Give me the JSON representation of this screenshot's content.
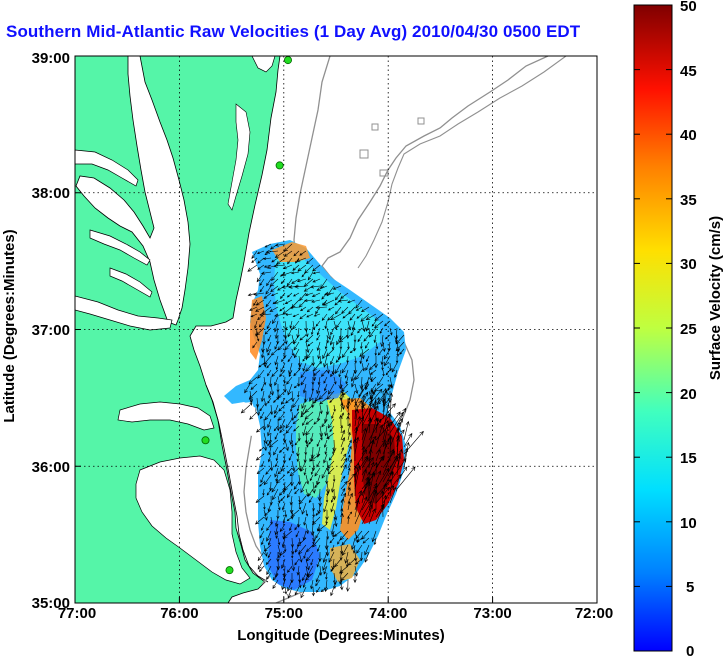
{
  "title": "Southern Mid-Atlantic Raw Velocities (1 Day Avg) 2010/04/30 0500 EDT",
  "map": {
    "x_ticks": [
      "77:00",
      "76:00",
      "75:00",
      "74:00",
      "73:00",
      "72:00"
    ],
    "y_ticks": [
      "39:00",
      "38:00",
      "37:00",
      "36:00",
      "35:00"
    ],
    "xlabel": "Longitude (Degrees:Minutes)",
    "ylabel": "Latitude (Degrees:Minutes)",
    "lon_range": [
      -77,
      -72
    ],
    "lat_range": [
      35,
      39
    ],
    "land_color": "#55f5a8",
    "water_color": "#ffffff",
    "grid": "dotted"
  },
  "colorbar": {
    "label": "Surface Velocity (cm/s)",
    "ticks": [
      "50",
      "45",
      "40",
      "35",
      "30",
      "25",
      "20",
      "15",
      "10",
      "5",
      "0"
    ],
    "range": [
      0,
      50
    ],
    "colormap": "jet"
  },
  "stations": [
    {
      "lat": 38.97,
      "lon": -74.96
    },
    {
      "lat": 38.2,
      "lon": -75.04
    },
    {
      "lat": 36.19,
      "lon": -75.75
    },
    {
      "lat": 35.24,
      "lon": -75.52
    }
  ]
}
